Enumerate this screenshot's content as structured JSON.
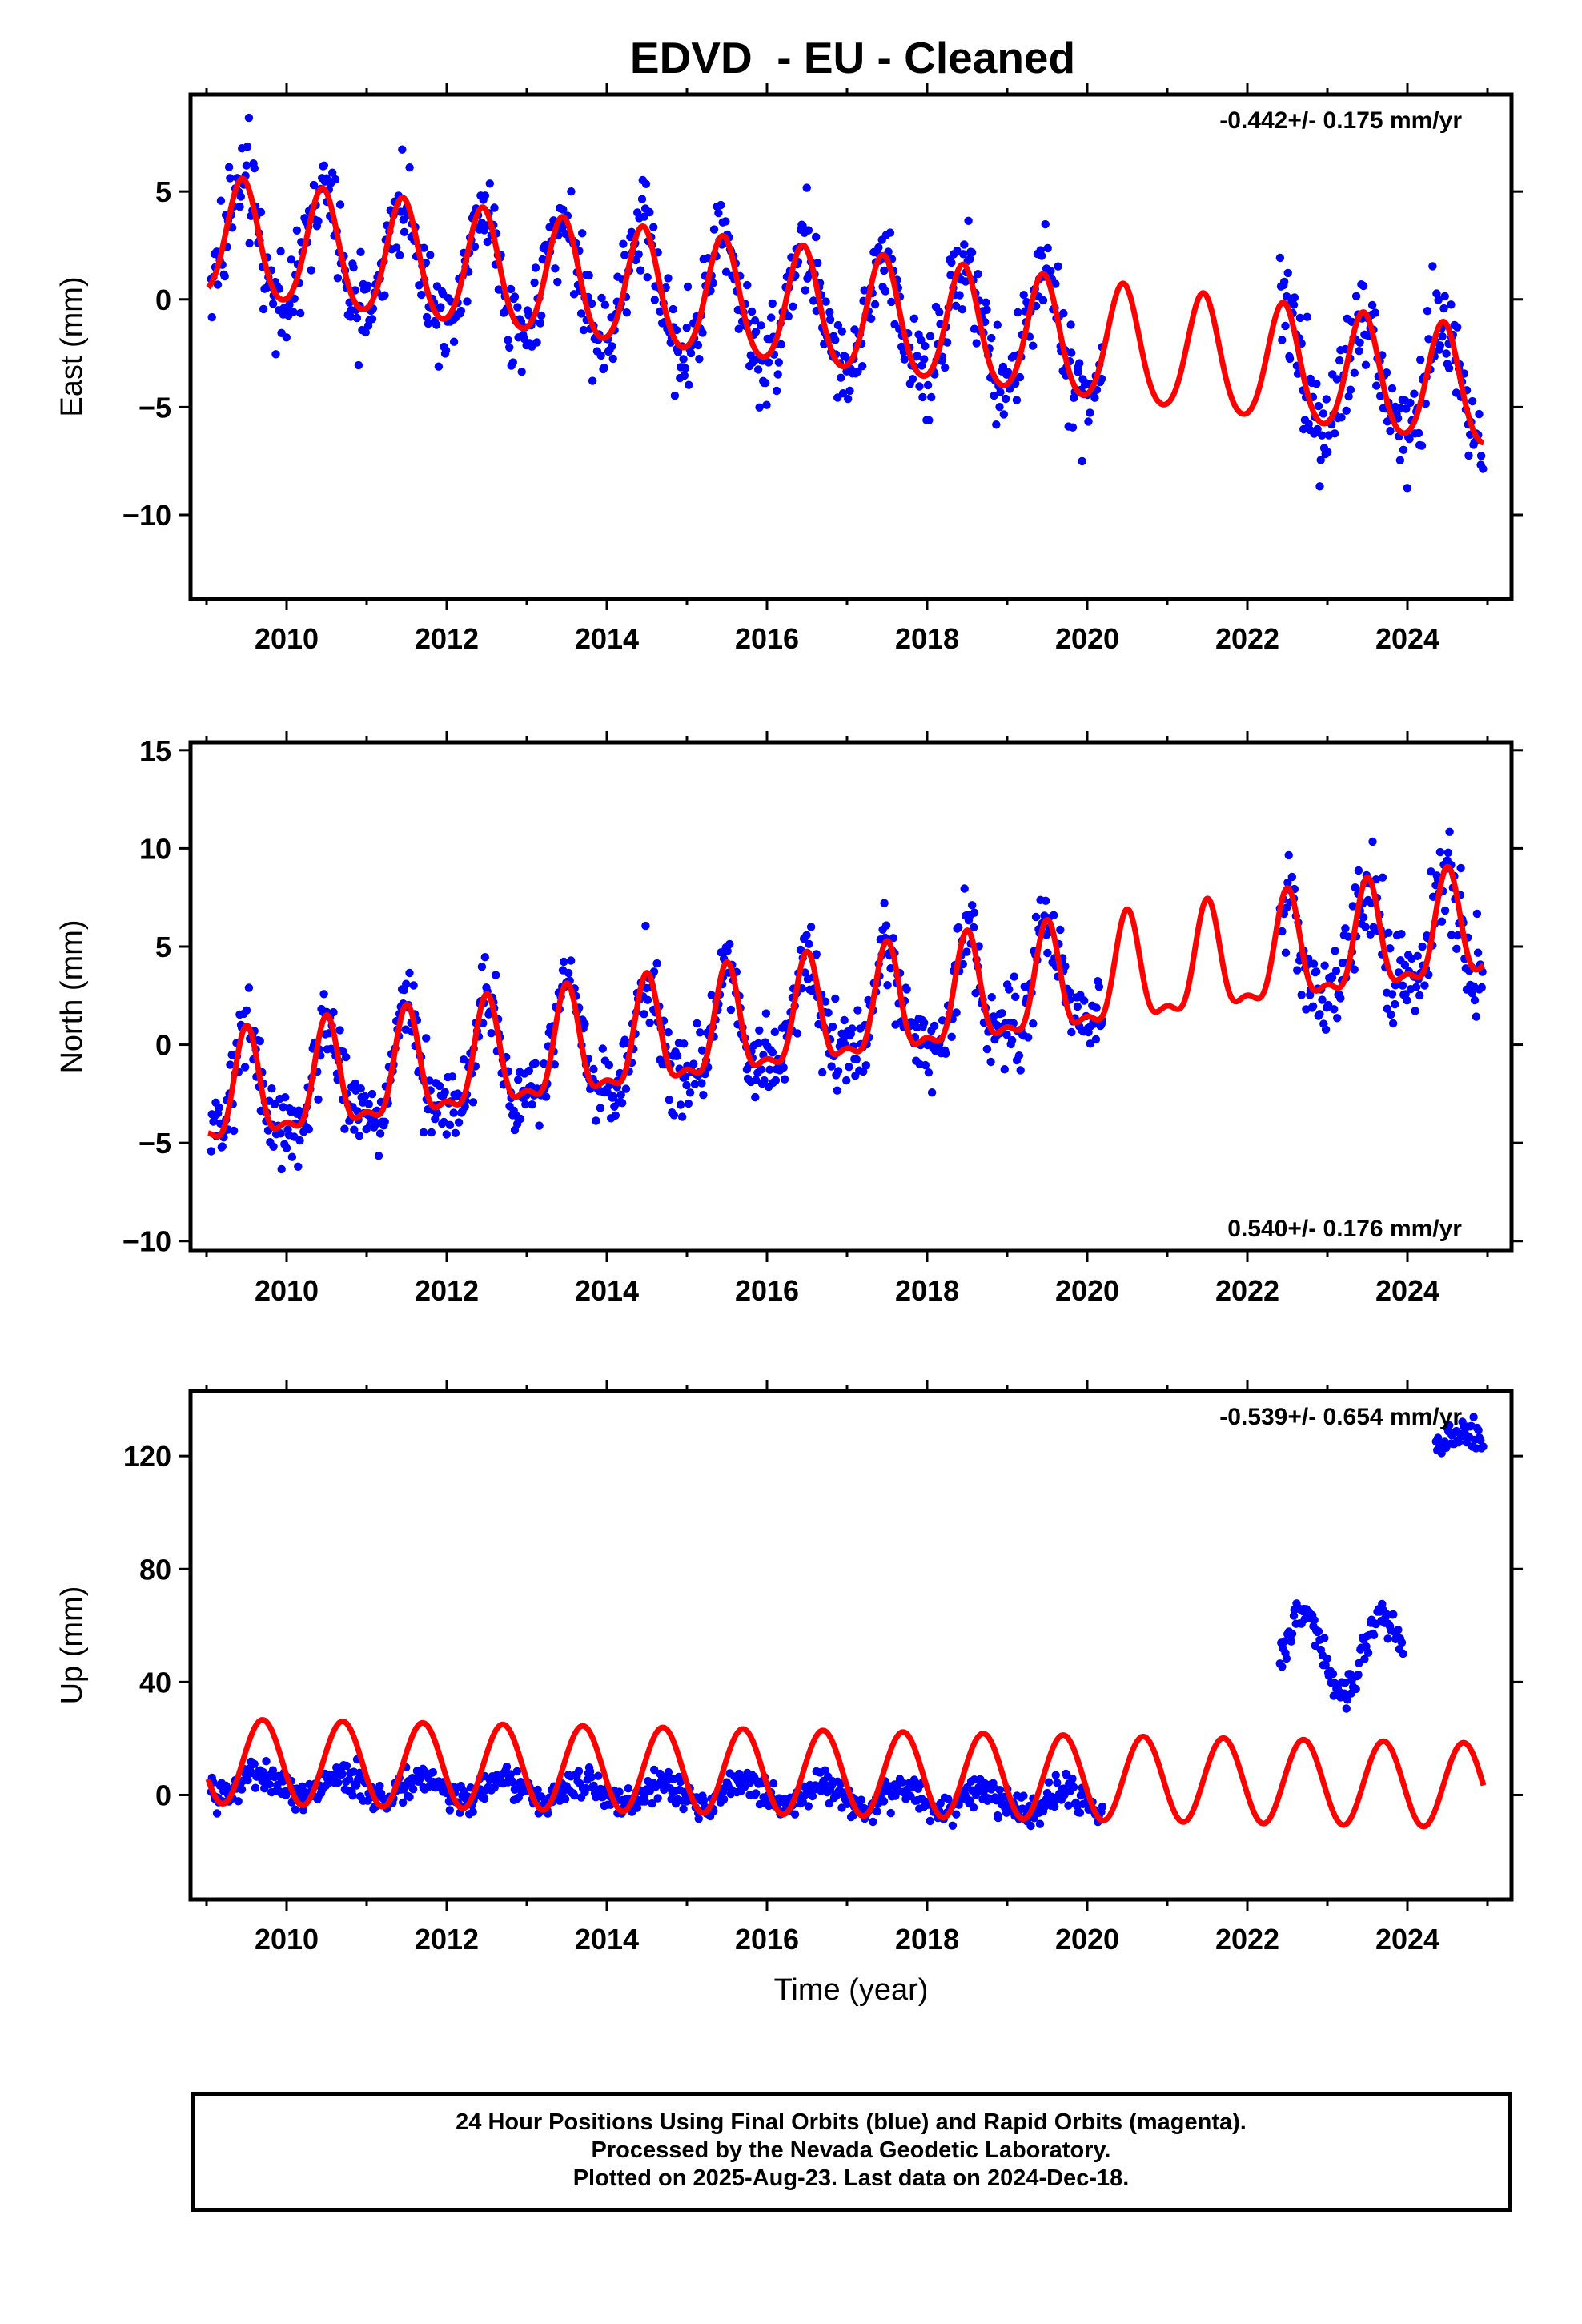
{
  "title": "EDVD  - EU - Cleaned",
  "footer": {
    "line1": "24 Hour Positions Using Final Orbits (blue) and Rapid Orbits (magenta).",
    "line2": "Processed by the Nevada Geodetic Laboratory.",
    "line3": "Plotted on 2025-Aug-23. Last data on 2024-Dec-18."
  },
  "colors": {
    "observations": "#0000ff",
    "model": "#ff0000"
  },
  "chart_data": [
    {
      "type": "scatter",
      "id": "east",
      "ylabel": "East (mm)",
      "xlim": [
        2008.8,
        2025.3
      ],
      "ylim": [
        -13.9,
        9.5
      ],
      "xticks": [
        2010,
        2012,
        2014,
        2016,
        2018,
        2020,
        2022,
        2024
      ],
      "yticks": [
        -10,
        -5,
        0,
        5
      ],
      "rate_text": "-0.442+/- 0.175 mm/yr",
      "rate_position": "top-right",
      "model": {
        "trend_mm_per_yr": -0.442,
        "intercept_2009": 2.8,
        "annual_amp": 2.7,
        "semiannual_amp": 0.3,
        "annual_peak": 2009.45,
        "x_start": 2009.02,
        "x_end": 2024.95
      },
      "segments": [
        {
          "x_start": 2009.05,
          "x_end": 2020.2,
          "spread": 1.6,
          "density": 70
        },
        {
          "x_start": 2022.4,
          "x_end": 2024.95,
          "spread": 1.9,
          "density": 70
        }
      ]
    },
    {
      "type": "scatter",
      "id": "north",
      "ylabel": "North (mm)",
      "xlim": [
        2008.8,
        2025.3
      ],
      "ylim": [
        -10.5,
        15.4
      ],
      "xticks": [
        2010,
        2012,
        2014,
        2016,
        2018,
        2020,
        2022,
        2024
      ],
      "yticks": [
        -10,
        -5,
        0,
        5,
        10,
        15
      ],
      "rate_text": "0.540+/- 0.176 mm/yr",
      "rate_position": "bottom-right",
      "model": {
        "trend_mm_per_yr": 0.54,
        "intercept_2009": -2.9,
        "annual_amp": 2.6,
        "semiannual_amp": 1.0,
        "annual_peak": 2009.5,
        "x_start": 2009.02,
        "x_end": 2024.95
      },
      "segments": [
        {
          "x_start": 2009.05,
          "x_end": 2020.2,
          "spread": 1.5,
          "density": 70
        },
        {
          "x_start": 2022.4,
          "x_end": 2024.95,
          "spread": 1.9,
          "density": 70
        }
      ]
    },
    {
      "type": "scatter",
      "id": "up",
      "ylabel": "Up (mm)",
      "xlabel": "Time (year)",
      "xlim": [
        2008.8,
        2025.3
      ],
      "ylim": [
        -37,
        143
      ],
      "xticks": [
        2010,
        2012,
        2014,
        2016,
        2018,
        2020,
        2022,
        2024
      ],
      "yticks": [
        0,
        40,
        80,
        120
      ],
      "rate_text": "-0.539+/- 0.654 mm/yr",
      "rate_position": "top-right",
      "model": {
        "trend_mm_per_yr": -0.539,
        "intercept_2009": 12,
        "annual_amp": 15,
        "semiannual_amp": 0.0,
        "annual_peak": 2009.7,
        "x_start": 2009.02,
        "x_end": 2024.95
      },
      "segments": [
        {
          "x_start": 2009.05,
          "x_end": 2020.2,
          "base": 4,
          "trend": -0.6,
          "annual_amp": 4,
          "spread": 4,
          "density": 70
        },
        {
          "x_start": 2022.4,
          "x_end": 2023.95,
          "base": 50,
          "trend": 0,
          "annual_amp": 14,
          "spread": 4,
          "density": 70
        },
        {
          "x_start": 2024.35,
          "x_end": 2024.95,
          "base": 125,
          "trend": 0,
          "annual_amp": 4,
          "spread": 4,
          "density": 70
        }
      ]
    }
  ]
}
